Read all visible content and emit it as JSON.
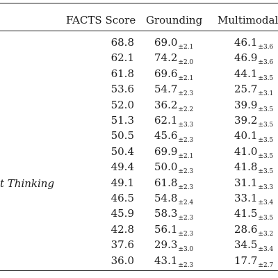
{
  "columns": [
    "FACTS Score",
    "Grounding",
    "Multimodal"
  ],
  "rows": [
    {
      "label": "",
      "facts": "68.8",
      "grounding": "69.0",
      "grounding_err": "±2.1",
      "multimodal": "46.1",
      "multimodal_err": "±3.6"
    },
    {
      "label": "",
      "facts": "62.1",
      "grounding": "74.2",
      "grounding_err": "±2.0",
      "multimodal": "46.9",
      "multimodal_err": "±3.6"
    },
    {
      "label": "",
      "facts": "61.8",
      "grounding": "69.6",
      "grounding_err": "±2.1",
      "multimodal": "44.1",
      "multimodal_err": "±3.5"
    },
    {
      "label": "",
      "facts": "53.6",
      "grounding": "54.7",
      "grounding_err": "±2.3",
      "multimodal": "25.7",
      "multimodal_err": "±3.1"
    },
    {
      "label": "",
      "facts": "52.0",
      "grounding": "36.2",
      "grounding_err": "±2.2",
      "multimodal": "39.9",
      "multimodal_err": "±3.5"
    },
    {
      "label": "",
      "facts": "51.3",
      "grounding": "62.1",
      "grounding_err": "±3.3",
      "multimodal": "39.2",
      "multimodal_err": "±3.5"
    },
    {
      "label": "",
      "facts": "50.5",
      "grounding": "45.6",
      "grounding_err": "±2.3",
      "multimodal": "40.1",
      "multimodal_err": "±3.5"
    },
    {
      "label": "",
      "facts": "50.4",
      "grounding": "69.9",
      "grounding_err": "±2.1",
      "multimodal": "41.0",
      "multimodal_err": "±3.5"
    },
    {
      "label": "",
      "facts": "49.4",
      "grounding": "50.0",
      "grounding_err": "±2.3",
      "multimodal": "41.8",
      "multimodal_err": "±3.5"
    },
    {
      "label": "t Thinking",
      "facts": "49.1",
      "grounding": "61.8",
      "grounding_err": "±2.3",
      "multimodal": "31.1",
      "multimodal_err": "±3.3"
    },
    {
      "label": "",
      "facts": "46.5",
      "grounding": "54.8",
      "grounding_err": "±2.4",
      "multimodal": "33.1",
      "multimodal_err": "±3.4"
    },
    {
      "label": "",
      "facts": "45.9",
      "grounding": "58.3",
      "grounding_err": "±2.3",
      "multimodal": "41.5",
      "multimodal_err": "±3.5"
    },
    {
      "label": "",
      "facts": "42.8",
      "grounding": "56.1",
      "grounding_err": "±2.3",
      "multimodal": "28.6",
      "multimodal_err": "±3.2"
    },
    {
      "label": "",
      "facts": "37.6",
      "grounding": "29.3",
      "grounding_err": "±3.0",
      "multimodal": "34.5",
      "multimodal_err": "±3.4"
    },
    {
      "label": "",
      "facts": "36.0",
      "grounding": "43.1",
      "grounding_err": "±2.3",
      "multimodal": "17.7",
      "multimodal_err": "±2.7"
    }
  ]
}
